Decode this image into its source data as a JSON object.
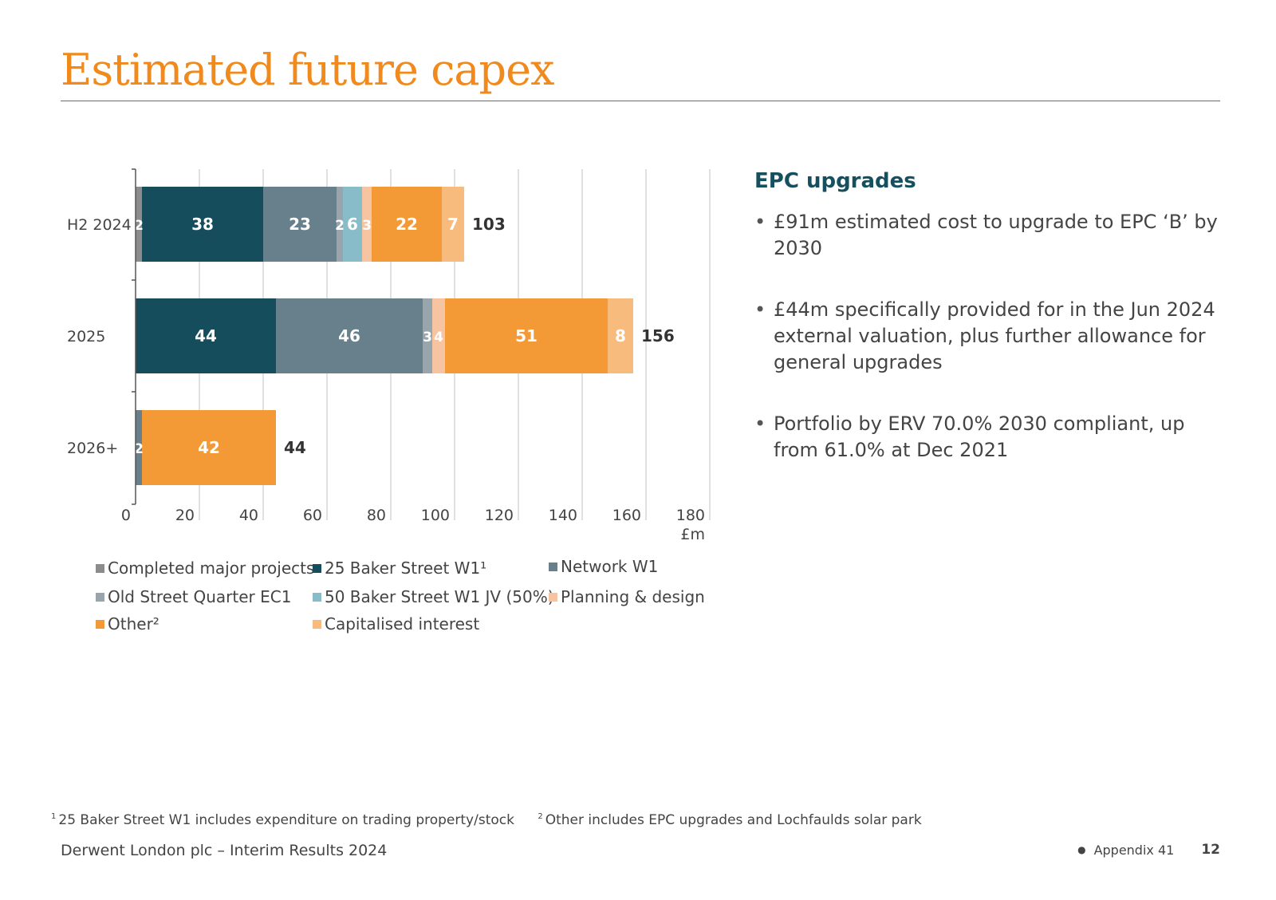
{
  "page": {
    "title": "Estimated future capex",
    "side_heading": "EPC upgrades",
    "bullets": [
      "£91m estimated cost to upgrade to EPC ‘B’ by 2030",
      "£44m specifically provided for in the Jun 2024 external valuation, plus further allowance for general upgrades",
      "Portfolio by ERV 70.0% 2030 compliant, up from 61.0% at Dec 2021"
    ],
    "footnote_1_marker": "1",
    "footnote_1": "25 Baker Street W1 includes expenditure on trading property/stock",
    "footnote_2_marker": "2",
    "footnote_2": "Other includes EPC upgrades and Lochfaulds solar park",
    "footer_left": "Derwent London plc – Interim Results 2024",
    "footer_appendix": "Appendix 41",
    "page_number": "12"
  },
  "chart_data": {
    "type": "bar",
    "orientation": "horizontal",
    "stacked": true,
    "categories": [
      "H2 2024",
      "2025",
      "2026+"
    ],
    "series": [
      {
        "name": "Completed major projects",
        "legend_label": "Completed major projects",
        "color": "#8c8c8c",
        "values": [
          2,
          0,
          0
        ],
        "labels": [
          "2",
          "",
          ""
        ]
      },
      {
        "name": "25 Baker Street W1",
        "legend_label": "25 Baker Street W1¹",
        "color": "#154d5c",
        "values": [
          38,
          44,
          0
        ],
        "labels": [
          "38",
          "44",
          ""
        ]
      },
      {
        "name": "Network W1",
        "legend_label": "Network W1",
        "color": "#687f8c",
        "values": [
          23,
          46,
          2
        ],
        "labels": [
          "23",
          "46",
          "2"
        ]
      },
      {
        "name": "Old Street Quarter EC1",
        "legend_label": "Old Street Quarter EC1",
        "color": "#99a5ad",
        "values": [
          2,
          3,
          0
        ],
        "labels": [
          "2",
          "3",
          ""
        ]
      },
      {
        "name": "50 Baker Street W1 JV (50%)",
        "legend_label": "50 Baker Street W1 JV (50%)",
        "color": "#88bcc8",
        "values": [
          6,
          0,
          0
        ],
        "labels": [
          "6",
          "",
          ""
        ]
      },
      {
        "name": "Planning & design",
        "legend_label": "Planning & design",
        "color": "#f7c4a2",
        "values": [
          3,
          4,
          0
        ],
        "labels": [
          "3",
          "4",
          ""
        ]
      },
      {
        "name": "Other",
        "legend_label": "Other²",
        "color": "#f39a36",
        "values": [
          22,
          51,
          42
        ],
        "labels": [
          "22",
          "51",
          "42"
        ]
      },
      {
        "name": "Capitalised interest",
        "legend_label": "Capitalised interest",
        "color": "#f8bb7e",
        "values": [
          7,
          8,
          0
        ],
        "labels": [
          "7",
          "8",
          ""
        ]
      }
    ],
    "totals": [
      103,
      156,
      44
    ],
    "total_labels": [
      "103",
      "156",
      "44"
    ],
    "xlim": [
      0,
      180
    ],
    "x_ticks": [
      0,
      20,
      40,
      60,
      80,
      100,
      120,
      140,
      160,
      180
    ],
    "x_tick_labels": [
      "0",
      "20",
      "40",
      "60",
      "80",
      "100",
      "120",
      "140",
      "160",
      "180"
    ],
    "x_unit": "£m",
    "title": "",
    "xlabel": "£m",
    "ylabel": "",
    "grid": true,
    "legend_position": "bottom"
  }
}
